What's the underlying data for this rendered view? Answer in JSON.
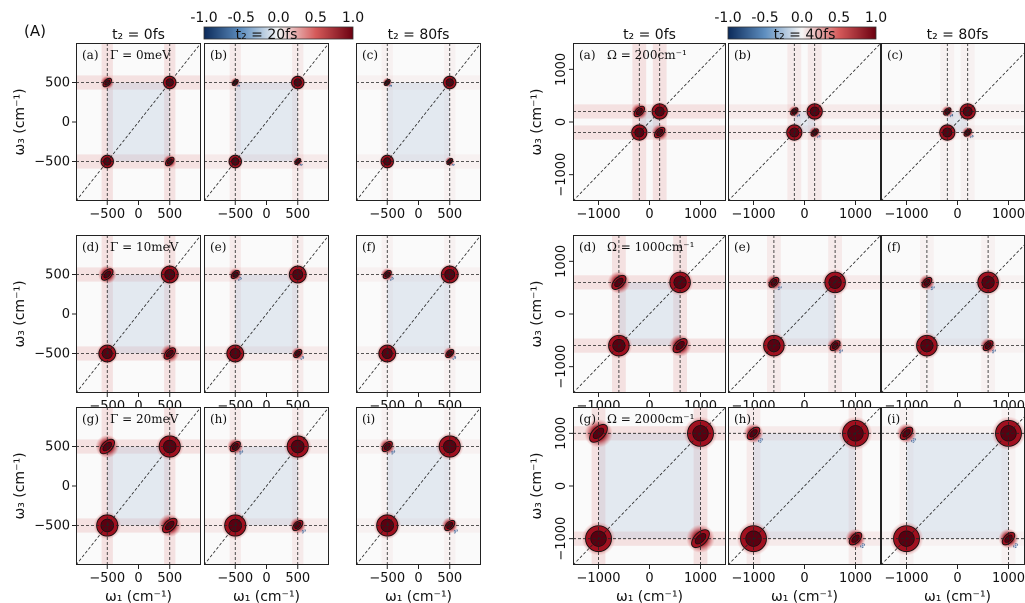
{
  "figure_label": "(A)",
  "colorbars": [
    {
      "ticks": [
        "-1.0",
        "-0.5",
        "0.0",
        "0.5",
        "1.0"
      ]
    },
    {
      "ticks": [
        "-1.0",
        "-0.5",
        "0.0",
        "0.5",
        "1.0"
      ]
    }
  ],
  "colors": {
    "negative": "#0b2a5a",
    "zero": "#f5f5f5",
    "positive": "#6b0010",
    "contour": "#111111",
    "grid_dash": "#222222"
  },
  "chart_data": [
    {
      "type": "heatmap",
      "group": "left",
      "column_titles": [
        "t₂ = 0fs",
        "t₂ = 20fs",
        "t₂ = 80fs"
      ],
      "row_params": [
        "Γ = 0meV",
        "Γ = 10meV",
        "Γ = 20meV"
      ],
      "panel_labels": [
        "(a)",
        "(b)",
        "(c)",
        "(d)",
        "(e)",
        "(f)",
        "(g)",
        "(h)",
        "(i)"
      ],
      "xlabel": "ω₁ (cm⁻¹)",
      "ylabel": "ω₃ (cm⁻¹)",
      "x_ticks": [
        "−500",
        "0",
        "500"
      ],
      "y_ticks": [
        "500",
        "0",
        "−500"
      ],
      "x_tick_values": [
        -500,
        0,
        500
      ],
      "y_tick_values": [
        500,
        0,
        -500
      ],
      "xlim": [
        -1000,
        1000
      ],
      "ylim": [
        -1000,
        1000
      ],
      "peak_positions": [
        -500,
        500
      ],
      "colorscale_range": [
        -1.0,
        1.0
      ]
    },
    {
      "type": "heatmap",
      "group": "right",
      "column_titles": [
        "t₂ = 0fs",
        "t₂ = 40fs",
        "t₂ = 80fs"
      ],
      "row_params": [
        "Ω = 200cm⁻¹",
        "Ω = 1000cm⁻¹",
        "Ω = 2000cm⁻¹"
      ],
      "panel_labels": [
        "(a)",
        "(b)",
        "(c)",
        "(d)",
        "(e)",
        "(f)",
        "(g)",
        "(h)",
        "(i)"
      ],
      "xlabel": "ω₁ (cm⁻¹)",
      "ylabel": "ω₃ (cm⁻¹)",
      "x_ticks": [
        "−1000",
        "0",
        "1000"
      ],
      "y_ticks": [
        "1000",
        "0",
        "−1000"
      ],
      "x_tick_values": [
        -1000,
        0,
        1000
      ],
      "y_tick_values": [
        1000,
        0,
        -1000
      ],
      "xlim": [
        -1500,
        1500
      ],
      "ylim": [
        -1500,
        1500
      ],
      "peak_positions_by_row": [
        [
          -200,
          200
        ],
        [
          -600,
          600
        ],
        [
          -1000,
          1000
        ]
      ],
      "colorscale_range": [
        -1.0,
        1.0
      ]
    }
  ]
}
